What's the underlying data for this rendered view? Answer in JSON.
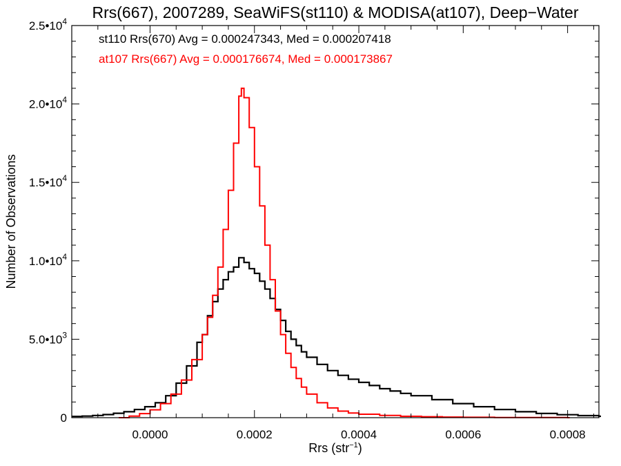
{
  "chart_data": {
    "type": "line",
    "title": "Rrs(667), 2007289, SeaWiFS(st110) & MODISA(at107), Deep−Water",
    "xlabel": {
      "text": "Rrs (str",
      "sup": "−1",
      "close": ")"
    },
    "ylabel": "Number of Observations",
    "xlim": [
      -0.00015,
      0.00086
    ],
    "ylim": [
      0,
      25000
    ],
    "x_ticks": [
      {
        "value": 0.0,
        "label": "0.0000"
      },
      {
        "value": 0.0002,
        "label": "0.0002"
      },
      {
        "value": 0.0004,
        "label": "0.0004"
      },
      {
        "value": 0.0006,
        "label": "0.0006"
      },
      {
        "value": 0.0008,
        "label": "0.0008"
      }
    ],
    "y_ticks": [
      {
        "value": 0,
        "base": "0",
        "exp": ""
      },
      {
        "value": 5000,
        "base": "5.0•10",
        "exp": "3"
      },
      {
        "value": 10000,
        "base": "1.0•10",
        "exp": "4"
      },
      {
        "value": 15000,
        "base": "1.5•10",
        "exp": "4"
      },
      {
        "value": 20000,
        "base": "2.0•10",
        "exp": "4"
      },
      {
        "value": 25000,
        "base": "2.5•10",
        "exp": "4"
      }
    ],
    "grid": false,
    "legend_position": "top-left",
    "series": [
      {
        "name": "st110 Rrs(670) Avg = 0.000247343, Med = 0.000207418",
        "color": "#000000",
        "style": "histogram-step",
        "points": [
          [
            -0.00015,
            80
          ],
          [
            -0.00013,
            100
          ],
          [
            -0.00011,
            140
          ],
          [
            -9e-05,
            200
          ],
          [
            -7e-05,
            280
          ],
          [
            -5e-05,
            380
          ],
          [
            -3e-05,
            520
          ],
          [
            -1e-05,
            700
          ],
          [
            1e-05,
            950
          ],
          [
            3e-05,
            1400
          ],
          [
            5e-05,
            2200
          ],
          [
            7e-05,
            3300
          ],
          [
            9e-05,
            4800
          ],
          [
            0.0001,
            5300
          ],
          [
            0.00011,
            6500
          ],
          [
            0.00012,
            7400
          ],
          [
            0.00013,
            8200
          ],
          [
            0.00014,
            8800
          ],
          [
            0.00015,
            9300
          ],
          [
            0.00016,
            9600
          ],
          [
            0.00017,
            10200
          ],
          [
            0.00018,
            9900
          ],
          [
            0.00019,
            9500
          ],
          [
            0.0002,
            9200
          ],
          [
            0.00021,
            8700
          ],
          [
            0.00022,
            8200
          ],
          [
            0.00023,
            7600
          ],
          [
            0.00024,
            6900
          ],
          [
            0.00025,
            6200
          ],
          [
            0.00026,
            5500
          ],
          [
            0.00027,
            5000
          ],
          [
            0.00028,
            4600
          ],
          [
            0.00029,
            4200
          ],
          [
            0.0003,
            3850
          ],
          [
            0.00032,
            3400
          ],
          [
            0.00034,
            3000
          ],
          [
            0.00036,
            2700
          ],
          [
            0.00038,
            2450
          ],
          [
            0.0004,
            2250
          ],
          [
            0.00042,
            2050
          ],
          [
            0.00044,
            1850
          ],
          [
            0.00046,
            1700
          ],
          [
            0.00048,
            1550
          ],
          [
            0.0005,
            1400
          ],
          [
            0.00054,
            1150
          ],
          [
            0.00058,
            900
          ],
          [
            0.00062,
            700
          ],
          [
            0.00066,
            520
          ],
          [
            0.0007,
            380
          ],
          [
            0.00074,
            270
          ],
          [
            0.00078,
            190
          ],
          [
            0.00082,
            130
          ],
          [
            0.00086,
            90
          ]
        ]
      },
      {
        "name": "at107 Rrs(667) Avg = 0.000176674, Med = 0.000173867",
        "color": "#ff0000",
        "style": "histogram-step",
        "points": [
          [
            -6e-05,
            0
          ],
          [
            -4e-05,
            100
          ],
          [
            -2e-05,
            260
          ],
          [
            0.0,
            500
          ],
          [
            2e-05,
            900
          ],
          [
            4e-05,
            1500
          ],
          [
            6e-05,
            2400
          ],
          [
            8e-05,
            3700
          ],
          [
            0.0001,
            5300
          ],
          [
            0.00011,
            6400
          ],
          [
            0.00012,
            7800
          ],
          [
            0.00013,
            9600
          ],
          [
            0.00014,
            12000
          ],
          [
            0.00015,
            14500
          ],
          [
            0.00016,
            17500
          ],
          [
            0.00017,
            20500
          ],
          [
            0.000175,
            21000
          ],
          [
            0.00018,
            20400
          ],
          [
            0.00019,
            18500
          ],
          [
            0.0002,
            16000
          ],
          [
            0.00021,
            13500
          ],
          [
            0.00022,
            11000
          ],
          [
            0.00023,
            8800
          ],
          [
            0.00024,
            6800
          ],
          [
            0.00025,
            5300
          ],
          [
            0.00026,
            4100
          ],
          [
            0.00027,
            3200
          ],
          [
            0.00028,
            2500
          ],
          [
            0.00029,
            1950
          ],
          [
            0.0003,
            1500
          ],
          [
            0.00032,
            950
          ],
          [
            0.00034,
            620
          ],
          [
            0.00036,
            420
          ],
          [
            0.00038,
            300
          ],
          [
            0.0004,
            220
          ],
          [
            0.00044,
            140
          ],
          [
            0.00048,
            90
          ],
          [
            0.00052,
            60
          ],
          [
            0.00056,
            40
          ],
          [
            0.0006,
            25
          ],
          [
            0.00066,
            15
          ],
          [
            0.00072,
            8
          ],
          [
            0.0008,
            0
          ]
        ]
      }
    ]
  }
}
